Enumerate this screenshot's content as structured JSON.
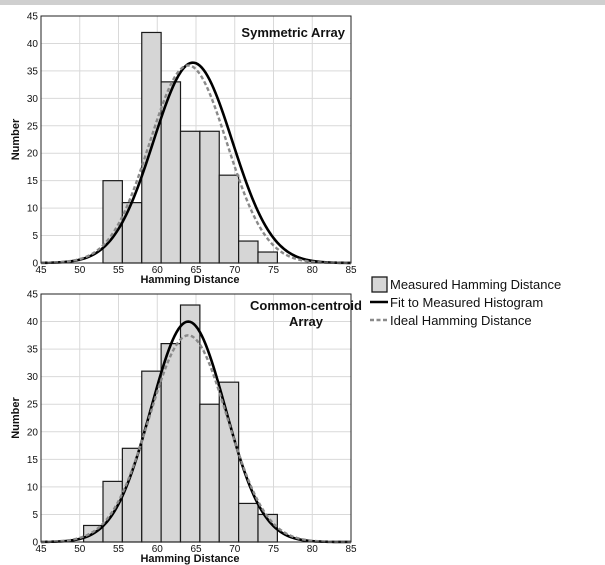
{
  "chart_data": [
    {
      "type": "bar",
      "title": "Symmetric Array",
      "xlabel": "Hamming Distance",
      "ylabel": "Number",
      "xlim": [
        45,
        85
      ],
      "ylim": [
        0,
        45
      ],
      "xticks": [
        45,
        50,
        55,
        60,
        65,
        70,
        75,
        80,
        85
      ],
      "yticks": [
        0,
        5,
        10,
        15,
        20,
        25,
        30,
        35,
        40,
        45
      ],
      "grid": true,
      "bin_width": 2.5,
      "bin_centers": [
        54.25,
        56.75,
        59.25,
        61.75,
        64.25,
        66.75,
        69.25,
        71.75,
        74.25,
        76.75,
        79.25
      ],
      "counts": [
        15,
        11,
        42,
        33,
        24,
        24,
        16,
        4,
        2,
        0,
        0
      ],
      "series": [
        {
          "name": "Measured Hamming Distance",
          "kind": "histogram"
        },
        {
          "name": "Fit to Measured Histogram",
          "kind": "gaussian",
          "mean": 64.6,
          "sigma": 5.1,
          "peak": 36.5
        },
        {
          "name": "Ideal Hamming Distance",
          "kind": "gaussian",
          "mean": 64.0,
          "sigma": 5.0,
          "peak": 36.0
        }
      ]
    },
    {
      "type": "bar",
      "title": "Common-centroid Array",
      "title_lines": [
        "Common-centroid",
        "Array"
      ],
      "xlabel": "Hamming Distance",
      "ylabel": "Number",
      "xlim": [
        45,
        85
      ],
      "ylim": [
        0,
        45
      ],
      "xticks": [
        45,
        50,
        55,
        60,
        65,
        70,
        75,
        80,
        85
      ],
      "yticks": [
        0,
        5,
        10,
        15,
        20,
        25,
        30,
        35,
        40,
        45
      ],
      "grid": true,
      "bin_width": 2.5,
      "bin_centers": [
        51.75,
        54.25,
        56.75,
        59.25,
        61.75,
        64.25,
        66.75,
        69.25,
        71.75,
        74.25,
        76.75
      ],
      "counts": [
        3,
        11,
        17,
        31,
        36,
        43,
        25,
        29,
        7,
        5,
        0
      ],
      "series": [
        {
          "name": "Measured Hamming Distance",
          "kind": "histogram"
        },
        {
          "name": "Fit to Measured Histogram",
          "kind": "gaussian",
          "mean": 64.0,
          "sigma": 4.8,
          "peak": 40.0
        },
        {
          "name": "Ideal Hamming Distance",
          "kind": "gaussian",
          "mean": 64.0,
          "sigma": 5.0,
          "peak": 37.5
        }
      ]
    }
  ],
  "legend": {
    "placement": "right",
    "items": [
      {
        "label": "Measured Hamming Distance",
        "style": "box"
      },
      {
        "label": "Fit to Measured Histogram",
        "style": "solid"
      },
      {
        "label": "Ideal Hamming Distance",
        "style": "dashed"
      }
    ]
  },
  "colors": {
    "bar_fill": "#d6d6d6",
    "bar_stroke": "#1a1a1a",
    "fit_line": "#000000",
    "ideal_line": "#8a8a8a",
    "grid": "#d9d9d9"
  }
}
